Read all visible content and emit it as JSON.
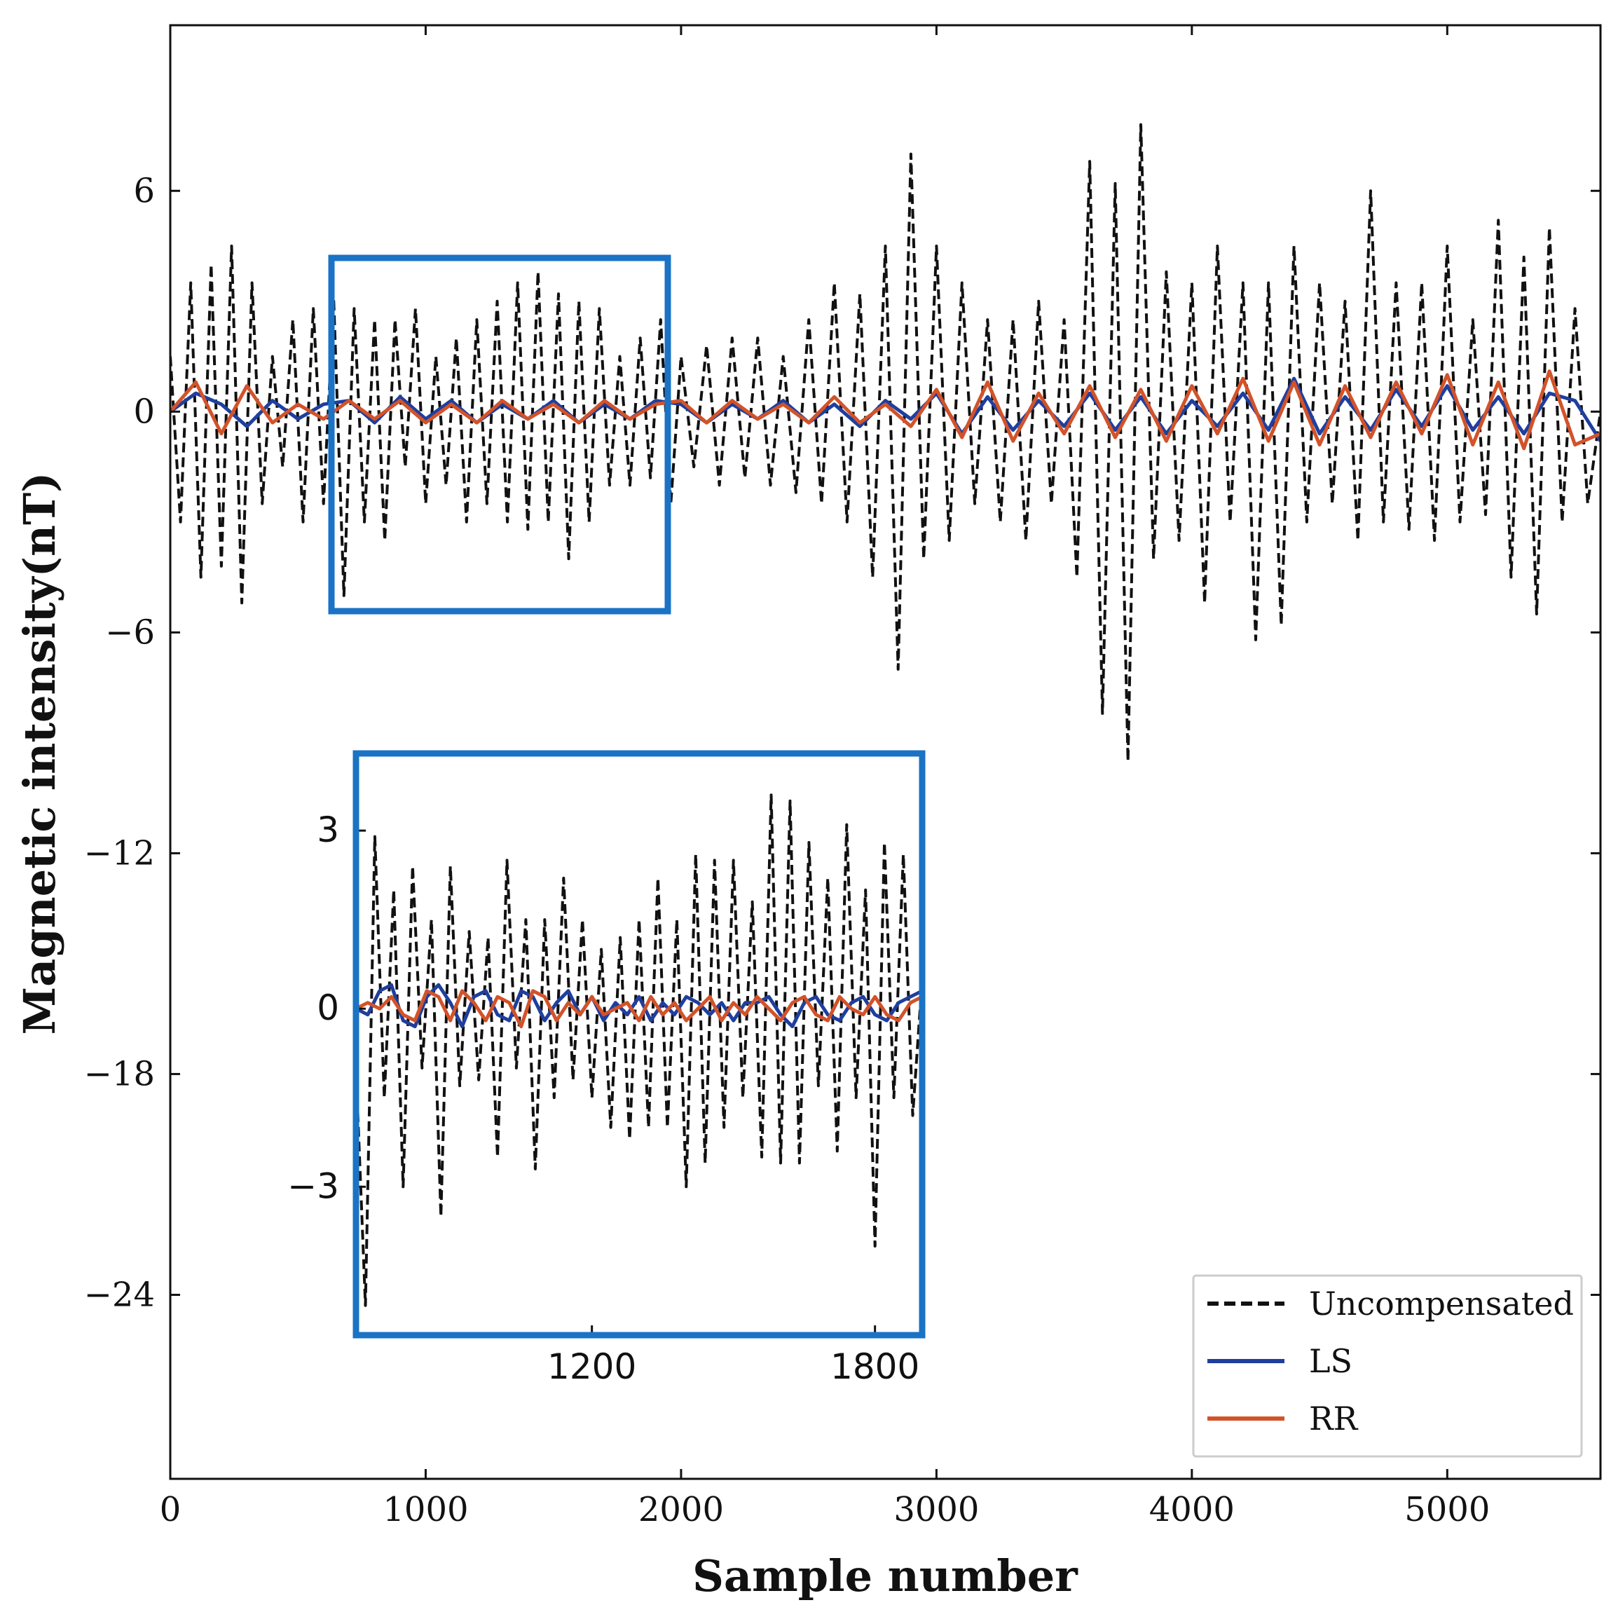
{
  "chart_data": [
    {
      "name": "main",
      "type": "line",
      "title": "",
      "xlabel": "Sample number",
      "ylabel": "Magnetic intensity(nT)",
      "xlim": [
        0,
        5600
      ],
      "ylim": [
        -29,
        10.5
      ],
      "x_ticks": [
        0,
        1000,
        2000,
        3000,
        4000,
        5000
      ],
      "x_tick_labels": [
        "0",
        "1000",
        "2000",
        "3000",
        "4000",
        "5000"
      ],
      "y_ticks": [
        6,
        0,
        -6,
        -12,
        -18,
        -24
      ],
      "y_tick_labels": [
        "6",
        "0",
        "-6",
        "-12",
        "-18",
        "-24"
      ],
      "grid": false,
      "legend_position": "bottom-right",
      "series": [
        {
          "name": "Uncompensated",
          "style": "dashed",
          "color": "#111111",
          "x": [
            0,
            40,
            80,
            120,
            160,
            200,
            240,
            280,
            320,
            360,
            400,
            440,
            480,
            520,
            560,
            600,
            640,
            680,
            720,
            760,
            800,
            840,
            880,
            920,
            960,
            1000,
            1040,
            1080,
            1120,
            1160,
            1200,
            1240,
            1280,
            1320,
            1360,
            1400,
            1440,
            1480,
            1520,
            1560,
            1600,
            1640,
            1680,
            1720,
            1760,
            1800,
            1840,
            1880,
            1920,
            1960,
            2000,
            2050,
            2100,
            2150,
            2200,
            2250,
            2300,
            2350,
            2400,
            2450,
            2500,
            2550,
            2600,
            2650,
            2700,
            2750,
            2800,
            2850,
            2900,
            2950,
            3000,
            3050,
            3100,
            3150,
            3200,
            3250,
            3300,
            3350,
            3400,
            3450,
            3500,
            3550,
            3600,
            3650,
            3700,
            3750,
            3800,
            3850,
            3900,
            3950,
            4000,
            4050,
            4100,
            4150,
            4200,
            4250,
            4300,
            4350,
            4400,
            4450,
            4500,
            4550,
            4600,
            4650,
            4700,
            4750,
            4800,
            4850,
            4900,
            4950,
            5000,
            5050,
            5100,
            5150,
            5200,
            5250,
            5300,
            5350,
            5400,
            5450,
            5500,
            5550,
            5600
          ],
          "values": [
            1.5,
            -3.0,
            3.5,
            -4.5,
            4.0,
            -4.2,
            4.5,
            -5.2,
            3.5,
            -2.5,
            1.5,
            -1.5,
            2.5,
            -3.0,
            2.8,
            -2.5,
            3.0,
            -5.0,
            2.8,
            -3.0,
            2.5,
            -3.5,
            2.5,
            -1.5,
            2.8,
            -2.5,
            1.5,
            -2.0,
            2.0,
            -3.0,
            2.5,
            -2.5,
            3.0,
            -3.0,
            3.5,
            -3.2,
            3.8,
            -3.0,
            3.2,
            -4.0,
            3.0,
            -3.0,
            2.8,
            -2.0,
            1.5,
            -2.0,
            2.0,
            -1.8,
            2.5,
            -2.5,
            1.5,
            -1.5,
            1.8,
            -2.0,
            2.0,
            -1.8,
            2.0,
            -2.0,
            1.5,
            -2.2,
            2.5,
            -2.5,
            3.5,
            -3.0,
            3.2,
            -4.5,
            4.5,
            -7.0,
            7.0,
            -4.0,
            4.5,
            -3.5,
            3.5,
            -2.5,
            2.5,
            -3.0,
            2.5,
            -3.5,
            3.0,
            -2.5,
            2.5,
            -4.5,
            6.8,
            -8.2,
            6.2,
            -9.5,
            7.8,
            -4.0,
            3.8,
            -3.5,
            3.5,
            -5.2,
            4.5,
            -3.0,
            3.5,
            -6.2,
            3.5,
            -5.8,
            4.5,
            -3.0,
            3.5,
            -2.5,
            3.0,
            -3.5,
            6.0,
            -3.0,
            3.5,
            -3.2,
            3.5,
            -3.5,
            4.5,
            -3.0,
            2.5,
            -2.8,
            5.2,
            -4.5,
            4.2,
            -5.5,
            5.0,
            -3.0,
            2.8,
            -2.5,
            0.0
          ]
        },
        {
          "name": "LS",
          "style": "solid",
          "color": "#1f3f9e",
          "x": [
            0,
            100,
            200,
            300,
            400,
            500,
            600,
            700,
            800,
            900,
            1000,
            1100,
            1200,
            1300,
            1400,
            1500,
            1600,
            1700,
            1800,
            1900,
            2000,
            2100,
            2200,
            2300,
            2400,
            2500,
            2600,
            2700,
            2800,
            2900,
            3000,
            3100,
            3200,
            3300,
            3400,
            3500,
            3600,
            3700,
            3800,
            3900,
            4000,
            4100,
            4200,
            4300,
            4400,
            4500,
            4600,
            4700,
            4800,
            4900,
            5000,
            5100,
            5200,
            5300,
            5400,
            5500,
            5600
          ],
          "values": [
            0.0,
            0.5,
            0.2,
            -0.4,
            0.3,
            -0.2,
            0.2,
            0.3,
            -0.3,
            0.4,
            -0.2,
            0.3,
            -0.3,
            0.2,
            -0.2,
            0.3,
            -0.3,
            0.2,
            -0.2,
            0.3,
            0.2,
            -0.3,
            0.2,
            -0.2,
            0.3,
            -0.3,
            0.2,
            -0.4,
            0.3,
            -0.2,
            0.5,
            -0.6,
            0.4,
            -0.5,
            0.3,
            -0.4,
            0.5,
            -0.5,
            0.4,
            -0.6,
            0.3,
            -0.4,
            0.5,
            -0.5,
            0.9,
            -0.6,
            0.4,
            -0.5,
            0.6,
            -0.4,
            0.7,
            -0.5,
            0.4,
            -0.6,
            0.5,
            0.3,
            -0.8
          ]
        },
        {
          "name": "RR",
          "style": "solid",
          "color": "#d2532a",
          "x": [
            0,
            100,
            200,
            300,
            400,
            500,
            600,
            700,
            800,
            900,
            1000,
            1100,
            1200,
            1300,
            1400,
            1500,
            1600,
            1700,
            1800,
            1900,
            2000,
            2100,
            2200,
            2300,
            2400,
            2500,
            2600,
            2700,
            2800,
            2900,
            3000,
            3100,
            3200,
            3300,
            3400,
            3500,
            3600,
            3700,
            3800,
            3900,
            4000,
            4100,
            4200,
            4300,
            4400,
            4500,
            4600,
            4700,
            4800,
            4900,
            5000,
            5100,
            5200,
            5300,
            5400,
            5500,
            5600
          ],
          "values": [
            0.0,
            0.8,
            -0.6,
            0.7,
            -0.3,
            0.2,
            -0.2,
            0.3,
            -0.2,
            0.3,
            -0.3,
            0.2,
            -0.3,
            0.3,
            -0.2,
            0.2,
            -0.3,
            0.3,
            -0.2,
            0.2,
            0.3,
            -0.3,
            0.3,
            -0.2,
            0.2,
            -0.3,
            0.4,
            -0.3,
            0.2,
            -0.4,
            0.6,
            -0.7,
            0.8,
            -0.8,
            0.5,
            -0.6,
            0.7,
            -0.7,
            0.6,
            -0.8,
            0.7,
            -0.6,
            0.9,
            -0.8,
            0.8,
            -0.9,
            0.7,
            -0.7,
            0.8,
            -0.6,
            1.0,
            -0.9,
            0.8,
            -1.0,
            1.1,
            -0.9,
            -0.6
          ]
        }
      ]
    },
    {
      "name": "inset",
      "type": "line",
      "title": "",
      "xlabel": "",
      "ylabel": "",
      "xlim": [
        700,
        1900
      ],
      "ylim": [
        -5.5,
        4.3
      ],
      "x_ticks": [
        1200,
        1800
      ],
      "x_tick_labels": [
        "1200",
        "1800"
      ],
      "y_ticks": [
        3,
        0,
        -3
      ],
      "y_tick_labels": [
        "3",
        "0",
        "-3"
      ],
      "grid": false,
      "series": [
        {
          "name": "Uncompensated",
          "style": "dashed",
          "color": "#111111",
          "x": [
            700,
            720,
            740,
            760,
            780,
            800,
            820,
            840,
            860,
            880,
            900,
            920,
            940,
            960,
            980,
            1000,
            1020,
            1040,
            1060,
            1080,
            1100,
            1120,
            1140,
            1160,
            1180,
            1200,
            1220,
            1240,
            1260,
            1280,
            1300,
            1320,
            1340,
            1360,
            1380,
            1400,
            1420,
            1440,
            1460,
            1480,
            1500,
            1520,
            1540,
            1560,
            1580,
            1600,
            1620,
            1640,
            1660,
            1680,
            1700,
            1720,
            1740,
            1760,
            1780,
            1800,
            1820,
            1840,
            1860,
            1880,
            1900
          ],
          "values": [
            -1.0,
            -5.0,
            2.9,
            -1.5,
            2.0,
            -3.0,
            2.4,
            -1.0,
            1.5,
            -3.5,
            2.4,
            -1.3,
            1.3,
            -1.2,
            1.2,
            -2.5,
            2.5,
            -1.0,
            1.5,
            -2.7,
            1.5,
            -1.5,
            2.2,
            -1.2,
            1.5,
            -1.5,
            1.0,
            -2.0,
            1.2,
            -2.2,
            1.5,
            -2.0,
            2.2,
            -2.0,
            1.5,
            -3.0,
            2.6,
            -2.6,
            2.5,
            -2.0,
            2.5,
            -1.5,
            1.8,
            -2.5,
            3.6,
            -2.6,
            3.5,
            -2.6,
            2.8,
            -1.3,
            2.2,
            -2.4,
            3.1,
            -1.5,
            2.0,
            -4.0,
            2.8,
            -1.5,
            2.6,
            -1.8,
            0.5
          ]
        },
        {
          "name": "LS",
          "style": "solid",
          "color": "#1f3f9e",
          "x": [
            700,
            725,
            750,
            775,
            800,
            825,
            850,
            875,
            900,
            925,
            950,
            975,
            1000,
            1025,
            1050,
            1075,
            1100,
            1125,
            1150,
            1175,
            1200,
            1225,
            1250,
            1275,
            1300,
            1325,
            1350,
            1375,
            1400,
            1425,
            1450,
            1475,
            1500,
            1525,
            1550,
            1575,
            1600,
            1625,
            1650,
            1675,
            1700,
            1725,
            1750,
            1775,
            1800,
            1825,
            1850,
            1875,
            1900
          ],
          "values": [
            0.0,
            -0.1,
            0.3,
            0.4,
            -0.2,
            -0.3,
            0.2,
            0.4,
            0.1,
            -0.3,
            0.2,
            0.3,
            -0.1,
            -0.2,
            0.3,
            0.2,
            -0.2,
            0.1,
            0.3,
            -0.1,
            0.2,
            -0.2,
            0.1,
            -0.1,
            0.2,
            -0.2,
            0.1,
            -0.1,
            0.2,
            0.1,
            -0.1,
            0.1,
            -0.2,
            0.1,
            0.1,
            0.2,
            -0.1,
            -0.3,
            0.1,
            0.2,
            -0.1,
            -0.2,
            0.1,
            0.2,
            -0.1,
            -0.2,
            0.1,
            0.2,
            0.3
          ]
        },
        {
          "name": "RR",
          "style": "solid",
          "color": "#d2532a",
          "x": [
            700,
            725,
            750,
            775,
            800,
            825,
            850,
            875,
            900,
            925,
            950,
            975,
            1000,
            1025,
            1050,
            1075,
            1100,
            1125,
            1150,
            1175,
            1200,
            1225,
            1250,
            1275,
            1300,
            1325,
            1350,
            1375,
            1400,
            1425,
            1450,
            1475,
            1500,
            1525,
            1550,
            1575,
            1600,
            1625,
            1650,
            1675,
            1700,
            1725,
            1750,
            1775,
            1800,
            1825,
            1850,
            1875,
            1900
          ],
          "values": [
            0.0,
            0.1,
            0.0,
            0.2,
            -0.1,
            -0.2,
            0.3,
            0.2,
            -0.2,
            0.3,
            0.1,
            -0.2,
            0.2,
            0.1,
            -0.3,
            0.3,
            0.2,
            -0.2,
            0.1,
            -0.1,
            0.2,
            -0.1,
            0.0,
            0.1,
            -0.2,
            0.2,
            -0.1,
            0.1,
            -0.2,
            0.0,
            0.2,
            -0.2,
            0.1,
            -0.1,
            0.2,
            0.0,
            -0.2,
            0.1,
            0.2,
            -0.1,
            -0.2,
            0.2,
            0.0,
            -0.1,
            0.2,
            -0.1,
            -0.2,
            0.1,
            0.2
          ]
        }
      ]
    }
  ],
  "colors": {
    "highlight_box": "#1a73c4",
    "axis": "#111111"
  }
}
